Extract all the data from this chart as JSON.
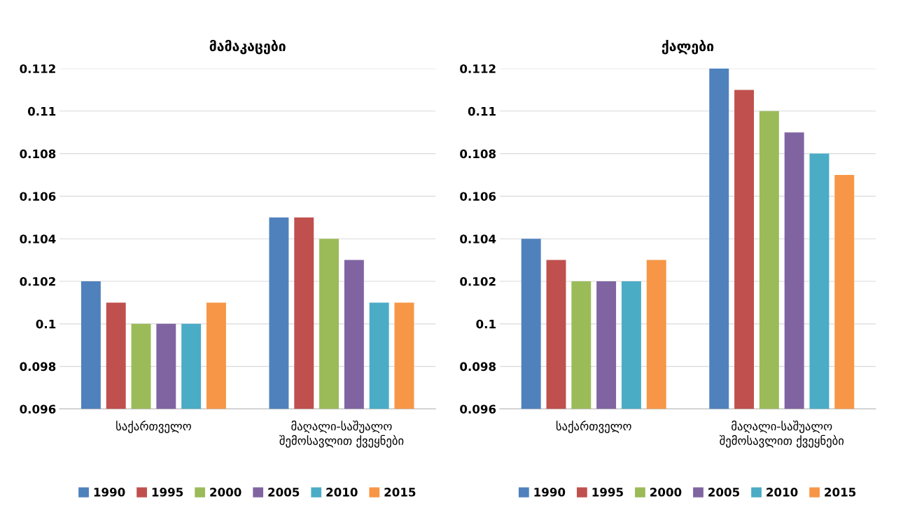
{
  "chart_data": [
    {
      "type": "bar",
      "title": "მამაკაცები",
      "categories": [
        "საქართველო",
        "მაღალი-საშუალო\nშემოსავლით ქვეყნები"
      ],
      "series": [
        {
          "name": "1990",
          "color": "#4f81bd",
          "values": [
            0.102,
            0.105
          ]
        },
        {
          "name": "1995",
          "color": "#c0504d",
          "values": [
            0.101,
            0.105
          ]
        },
        {
          "name": "2000",
          "color": "#9bbb59",
          "values": [
            0.1,
            0.104
          ]
        },
        {
          "name": "2005",
          "color": "#8064a2",
          "values": [
            0.1,
            0.103
          ]
        },
        {
          "name": "2010",
          "color": "#4bacc6",
          "values": [
            0.1,
            0.101
          ]
        },
        {
          "name": "2015",
          "color": "#f79646",
          "values": [
            0.101,
            0.101
          ]
        }
      ],
      "ylim": [
        0.096,
        0.112
      ],
      "yticks": [
        0.096,
        0.098,
        0.1,
        0.102,
        0.104,
        0.106,
        0.108,
        0.11,
        0.112
      ],
      "grid": "y",
      "legend": "bottom"
    },
    {
      "type": "bar",
      "title": "ქალები",
      "categories": [
        "საქართველო",
        "მაღალი-საშუალო\nშემოსავლით ქვეყნები"
      ],
      "series": [
        {
          "name": "1990",
          "color": "#4f81bd",
          "values": [
            0.104,
            0.112
          ]
        },
        {
          "name": "1995",
          "color": "#c0504d",
          "values": [
            0.103,
            0.111
          ]
        },
        {
          "name": "2000",
          "color": "#9bbb59",
          "values": [
            0.102,
            0.11
          ]
        },
        {
          "name": "2005",
          "color": "#8064a2",
          "values": [
            0.102,
            0.109
          ]
        },
        {
          "name": "2010",
          "color": "#4bacc6",
          "values": [
            0.102,
            0.108
          ]
        },
        {
          "name": "2015",
          "color": "#f79646",
          "values": [
            0.103,
            0.107
          ]
        }
      ],
      "ylim": [
        0.096,
        0.112
      ],
      "yticks": [
        0.096,
        0.098,
        0.1,
        0.102,
        0.104,
        0.106,
        0.108,
        0.11,
        0.112
      ],
      "grid": "y",
      "legend": "bottom"
    }
  ]
}
